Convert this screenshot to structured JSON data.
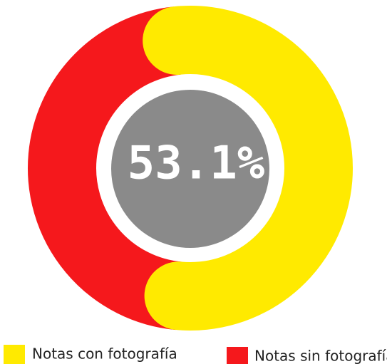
{
  "chart_data": {
    "type": "donut",
    "categories": [
      "Notas con fotografía",
      "Notas sin fotografía"
    ],
    "values": [
      53.1,
      46.9
    ],
    "colors": [
      "#ffea00",
      "#f5181c"
    ],
    "center_label": "53.1%",
    "center_color": "#8a8a8a"
  }
}
